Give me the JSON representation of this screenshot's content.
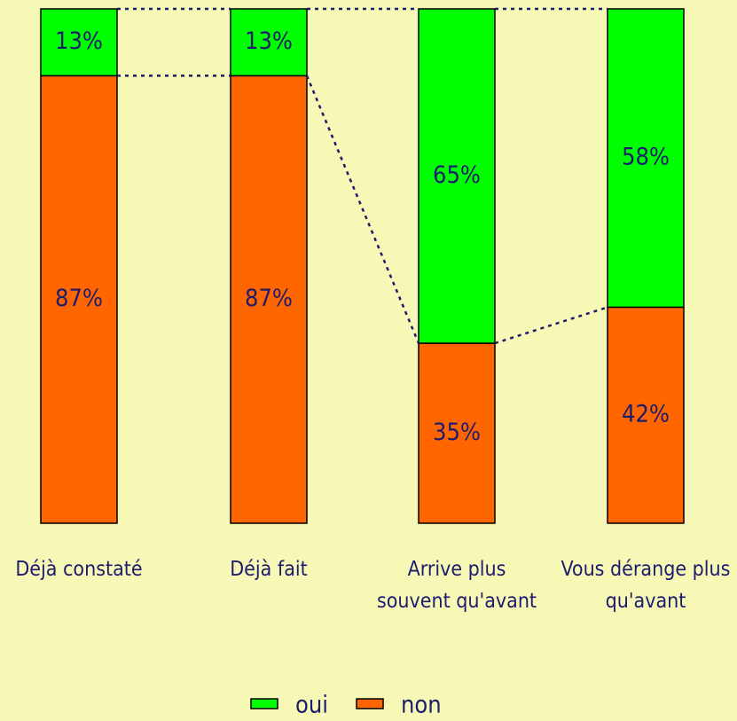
{
  "chart_data": {
    "type": "stacked_bar",
    "categories": [
      "Déjà constaté",
      "Déjà fait",
      "Arrive plus souvent qu'avant",
      "Vous dérange plus qu'avant"
    ],
    "series": [
      {
        "name": "oui",
        "color": "#00ff00",
        "values": [
          13,
          13,
          65,
          58
        ],
        "value_labels": [
          "13%",
          "13%",
          "65%",
          "58%"
        ]
      },
      {
        "name": "non",
        "color": "#ff6600",
        "values": [
          87,
          87,
          35,
          42
        ],
        "value_labels": [
          "87%",
          "87%",
          "35%",
          "42%"
        ]
      }
    ],
    "ylim": [
      0,
      100
    ],
    "legend": "bottom"
  }
}
